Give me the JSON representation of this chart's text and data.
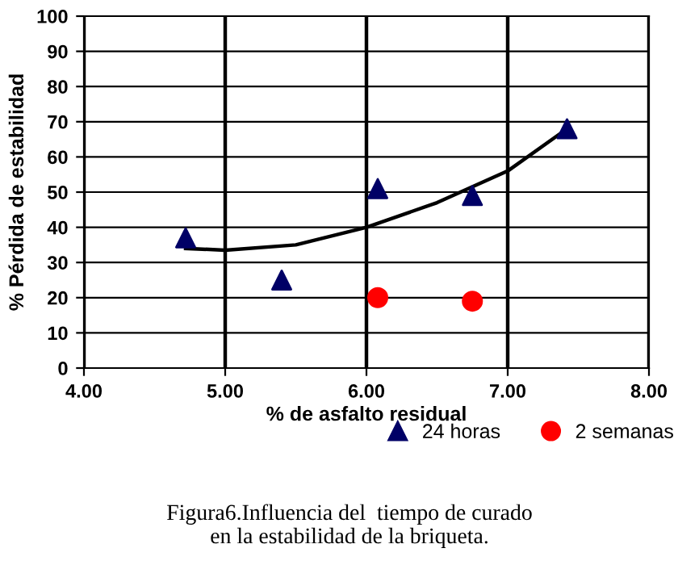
{
  "chart_data": {
    "type": "scatter",
    "xlabel": "% de asfalto residual",
    "ylabel": "% Pérdida de estabilidad",
    "xlim": [
      4,
      8
    ],
    "xticks": [
      {
        "value": 4,
        "label": "4.00"
      },
      {
        "value": 5,
        "label": "5.00"
      },
      {
        "value": 6,
        "label": "6.00"
      },
      {
        "value": 7,
        "label": "7.00"
      },
      {
        "value": 8,
        "label": "8.00"
      }
    ],
    "ylim": [
      0,
      100
    ],
    "yticks": [
      0,
      10,
      20,
      30,
      40,
      50,
      60,
      70,
      80,
      90,
      100
    ],
    "grid": true,
    "legend": "bottom",
    "series": [
      {
        "name": "24 horas",
        "color": "#000066",
        "marker": "triangle",
        "x": [
          4.72,
          5.4,
          6.08,
          6.75,
          7.42
        ],
        "values": [
          37,
          25,
          51,
          49,
          68
        ]
      },
      {
        "name": "2 semanas",
        "color": "#ff0000",
        "marker": "circle",
        "x": [
          6.08,
          6.75
        ],
        "values": [
          20,
          19
        ]
      },
      {
        "type": "line",
        "color": "#000000",
        "x": [
          4.72,
          5.0,
          5.5,
          6.0,
          6.5,
          7.0,
          7.42
        ],
        "values": [
          34,
          33.5,
          35,
          40,
          47,
          56,
          68
        ]
      }
    ],
    "annotations": [
      "Figura6.Influencia del  tiempo de curado\nen la estabilidad de la briqueta."
    ]
  }
}
